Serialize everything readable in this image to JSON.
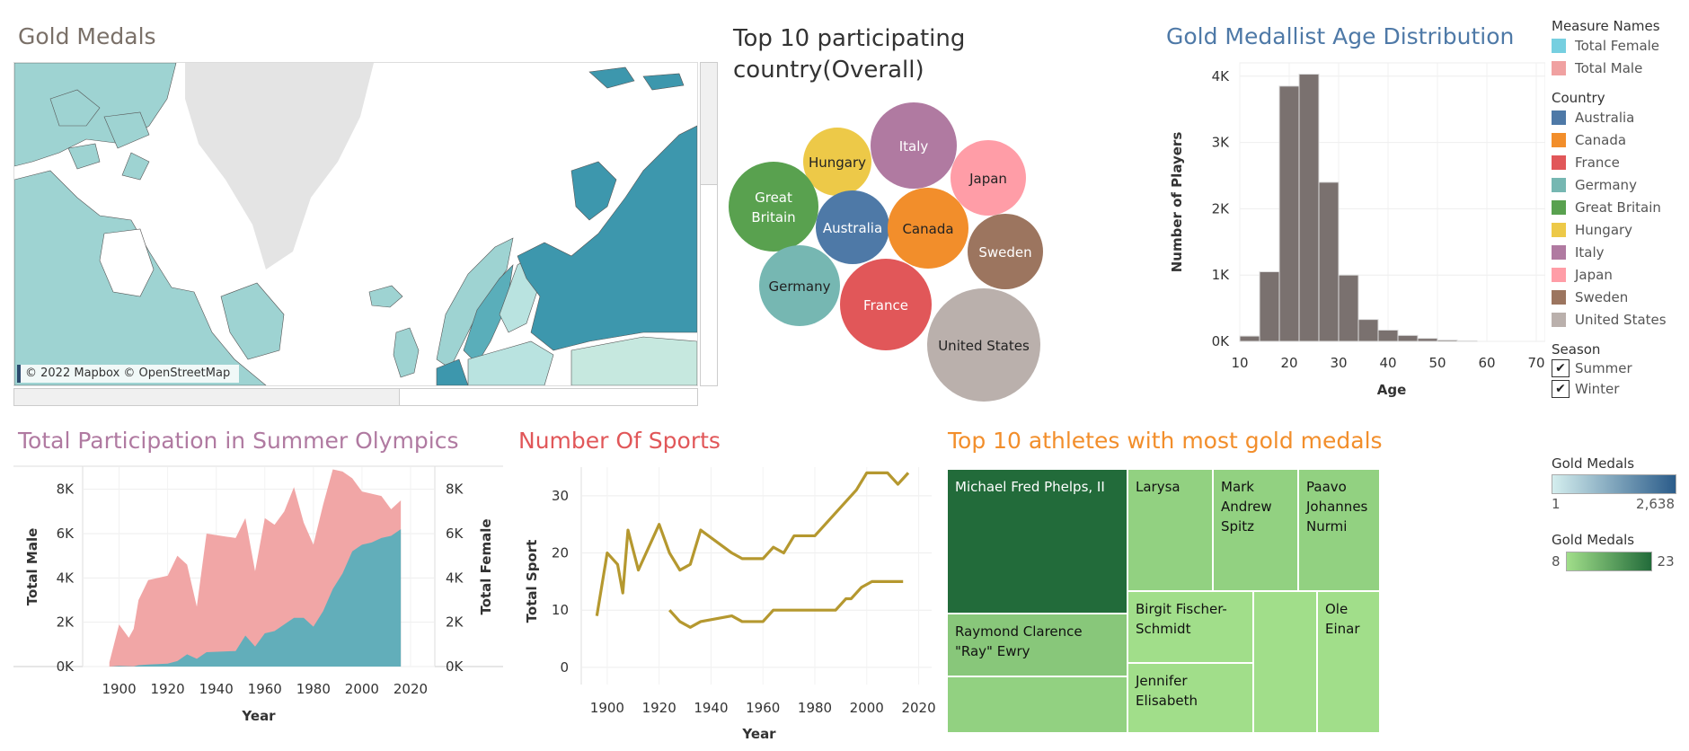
{
  "titles": {
    "gold_medals": "Gold Medals",
    "top10_countries": "Top 10 participating country(Overall)",
    "age_dist": "Gold Medallist Age Distribution",
    "participation": "Total Participation in Summer Olympics",
    "sports": "Number Of Sports",
    "athletes": "Top 10 athletes with most gold medals"
  },
  "colors": {
    "gold_medals": "#7a7068",
    "top10_countries": "#333333",
    "age_dist": "#4e79a7",
    "participation": "#b07aa1",
    "sports": "#e15759",
    "athletes": "#f28e2b"
  },
  "map": {
    "attribution": "© 2022 Mapbox © OpenStreetMap"
  },
  "legend": {
    "measure_names_title": "Measure Names",
    "measure_names": [
      {
        "label": "Total Female",
        "color": "#76cfe0"
      },
      {
        "label": "Total Male",
        "color": "#f0a1a1"
      }
    ],
    "country_title": "Country",
    "countries": [
      {
        "label": "Australia",
        "color": "#4e79a7"
      },
      {
        "label": "Canada",
        "color": "#f28e2b"
      },
      {
        "label": "France",
        "color": "#e15759"
      },
      {
        "label": "Germany",
        "color": "#76b7b2"
      },
      {
        "label": "Great Britain",
        "color": "#59a14f"
      },
      {
        "label": "Hungary",
        "color": "#edc948"
      },
      {
        "label": "Italy",
        "color": "#b07aa1"
      },
      {
        "label": "Japan",
        "color": "#ff9da7"
      },
      {
        "label": "Sweden",
        "color": "#9c755f"
      },
      {
        "label": "United States",
        "color": "#bab0ac"
      }
    ],
    "season_title": "Season",
    "seasons": [
      {
        "label": "Summer",
        "checked": true
      },
      {
        "label": "Winter",
        "checked": true
      }
    ],
    "gold_blue": {
      "title": "Gold Medals",
      "min": "1",
      "max": "2,638",
      "from": "#d4eeee",
      "to": "#2b5c8a"
    },
    "gold_green": {
      "title": "Gold Medals",
      "min": "8",
      "max": "23",
      "from": "#a1de8a",
      "to": "#226b3a"
    }
  },
  "chart_data": [
    {
      "id": "bubbles",
      "type": "bubble",
      "title": "Top 10 participating country(Overall)",
      "items": [
        {
          "label": "Hungary",
          "color": "#edc948",
          "text_color": "#222"
        },
        {
          "label": "Italy",
          "color": "#b07aa1",
          "text_color": "#fff"
        },
        {
          "label": "Japan",
          "color": "#ff9da7",
          "text_color": "#222"
        },
        {
          "label": "Great Britain",
          "color": "#59a14f",
          "text_color": "#fff"
        },
        {
          "label": "Australia",
          "color": "#4e79a7",
          "text_color": "#fff"
        },
        {
          "label": "Canada",
          "color": "#f28e2b",
          "text_color": "#222"
        },
        {
          "label": "Sweden",
          "color": "#9c755f",
          "text_color": "#fff"
        },
        {
          "label": "Germany",
          "color": "#76b7b2",
          "text_color": "#222"
        },
        {
          "label": "France",
          "color": "#e15759",
          "text_color": "#fff"
        },
        {
          "label": "United States",
          "color": "#bab0ac",
          "text_color": "#222"
        }
      ]
    },
    {
      "id": "age",
      "type": "bar",
      "title": "Gold Medallist Age Distribution",
      "xlabel": "Age",
      "ylabel": "Number of Players",
      "xticks": [
        "10",
        "20",
        "30",
        "40",
        "50",
        "60",
        "70"
      ],
      "yticks": [
        "0K",
        "1K",
        "2K",
        "3K",
        "4K"
      ],
      "xlim": [
        10,
        70
      ],
      "ylim": [
        0,
        4200
      ],
      "bin_width": 4,
      "bins": [
        {
          "start": 10,
          "value": 80
        },
        {
          "start": 14,
          "value": 1050
        },
        {
          "start": 18,
          "value": 3850
        },
        {
          "start": 22,
          "value": 4030
        },
        {
          "start": 26,
          "value": 2400
        },
        {
          "start": 30,
          "value": 1000
        },
        {
          "start": 34,
          "value": 330
        },
        {
          "start": 38,
          "value": 170
        },
        {
          "start": 42,
          "value": 90
        },
        {
          "start": 46,
          "value": 45
        },
        {
          "start": 50,
          "value": 20
        },
        {
          "start": 54,
          "value": 8
        }
      ],
      "color": "#7a716f"
    },
    {
      "id": "participation",
      "type": "area",
      "title": "Total Participation in Summer Olympics",
      "xlabel": "Year",
      "ylabel": "Total Male",
      "ylabel_right": "Total Female",
      "xticks": [
        "1900",
        "1920",
        "1940",
        "1960",
        "1980",
        "2000",
        "2020"
      ],
      "yticks": [
        "0K",
        "2K",
        "4K",
        "6K",
        "8K"
      ],
      "xlim": [
        1885,
        2030
      ],
      "ylim": [
        0,
        9000
      ],
      "series": [
        {
          "name": "Total Male",
          "color": "#f0a1a1",
          "x": [
            1896,
            1900,
            1904,
            1906,
            1908,
            1912,
            1920,
            1924,
            1928,
            1932,
            1936,
            1948,
            1952,
            1956,
            1960,
            1964,
            1968,
            1972,
            1976,
            1980,
            1984,
            1988,
            1992,
            1996,
            2000,
            2004,
            2008,
            2012,
            2016
          ],
          "y": [
            190,
            1900,
            1300,
            1700,
            3000,
            3900,
            4100,
            5000,
            4600,
            2700,
            6000,
            5800,
            6700,
            4300,
            6700,
            6400,
            7000,
            8100,
            6500,
            5500,
            7300,
            8900,
            8800,
            8500,
            7900,
            7800,
            7700,
            7100,
            7500
          ]
        },
        {
          "name": "Total Female",
          "color": "#5aaeba",
          "x": [
            1896,
            1900,
            1904,
            1906,
            1908,
            1912,
            1920,
            1924,
            1928,
            1932,
            1936,
            1948,
            1952,
            1956,
            1960,
            1964,
            1968,
            1972,
            1976,
            1980,
            1984,
            1988,
            1992,
            1996,
            2000,
            2004,
            2008,
            2012,
            2016
          ],
          "y": [
            0,
            30,
            16,
            10,
            60,
            90,
            130,
            250,
            550,
            350,
            650,
            700,
            1400,
            900,
            1500,
            1600,
            1900,
            2200,
            2200,
            1800,
            2500,
            3500,
            4200,
            5200,
            5500,
            5600,
            5800,
            5900,
            6200
          ]
        }
      ]
    },
    {
      "id": "sports",
      "type": "line",
      "title": "Number Of Sports",
      "xlabel": "Year",
      "ylabel": "Total Sport",
      "xticks": [
        "1900",
        "1920",
        "1940",
        "1960",
        "1980",
        "2000",
        "2020"
      ],
      "yticks": [
        "0",
        "10",
        "20",
        "30"
      ],
      "xlim": [
        1890,
        2025
      ],
      "ylim": [
        -3,
        35
      ],
      "series": [
        {
          "name": "Summer",
          "color": "#b5982f",
          "x": [
            1896,
            1900,
            1904,
            1906,
            1908,
            1912,
            1920,
            1924,
            1928,
            1932,
            1936,
            1948,
            1952,
            1956,
            1960,
            1964,
            1968,
            1972,
            1976,
            1980,
            1984,
            1988,
            1992,
            1996,
            2000,
            2004,
            2008,
            2012,
            2016
          ],
          "y": [
            9,
            20,
            18,
            13,
            24,
            17,
            25,
            20,
            17,
            18,
            24,
            20,
            19,
            19,
            19,
            21,
            20,
            23,
            23,
            23,
            25,
            27,
            29,
            31,
            34,
            34,
            34,
            32,
            34
          ]
        },
        {
          "name": "Winter",
          "color": "#b5982f",
          "x": [
            1924,
            1928,
            1932,
            1936,
            1948,
            1952,
            1956,
            1960,
            1964,
            1968,
            1972,
            1976,
            1980,
            1984,
            1988,
            1992,
            1994,
            1998,
            2002,
            2006,
            2010,
            2014
          ],
          "y": [
            10,
            8,
            7,
            8,
            9,
            8,
            8,
            8,
            10,
            10,
            10,
            10,
            10,
            10,
            10,
            12,
            12,
            14,
            15,
            15,
            15,
            15
          ]
        }
      ]
    },
    {
      "id": "athletes",
      "type": "treemap",
      "title": "Top 10 athletes with most gold medals",
      "items": [
        {
          "label": "Michael Fred Phelps, II",
          "value": 23
        },
        {
          "label": "Raymond Clarence \"Ray\" Ewry",
          "value": 10
        },
        {
          "label": "",
          "value": 9
        },
        {
          "label": "Larysa",
          "value": 9
        },
        {
          "label": "Mark Andrew Spitz",
          "value": 9
        },
        {
          "label": "Paavo Johannes Nurmi",
          "value": 9
        },
        {
          "label": "Birgit Fischer-Schmidt",
          "value": 8
        },
        {
          "label": "Jennifer Elisabeth",
          "value": 8
        },
        {
          "label": "",
          "value": 8
        },
        {
          "label": "Ole Einar",
          "value": 8
        }
      ]
    }
  ]
}
